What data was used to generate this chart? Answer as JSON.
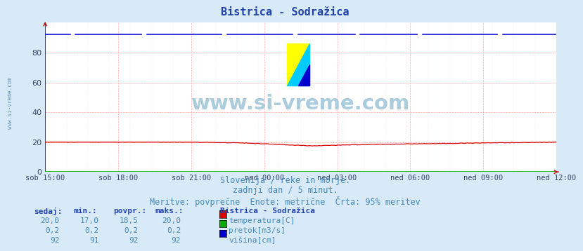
{
  "title": "Bistrica - Sodražica",
  "subtitle1": "Slovenija / reke in morje.",
  "subtitle2": "zadnji dan / 5 minut.",
  "subtitle3": "Meritve: povprečne  Enote: metrične  Črta: 95% meritev",
  "bg_color": "#d8eaf8",
  "plot_bg_color": "#ffffff",
  "title_color": "#2244aa",
  "subtitle_color": "#4488bb",
  "grid_color_major": "#ffaaaa",
  "grid_color_minor": "#ffdddd",
  "xticklabels": [
    "sob 15:00",
    "sob 18:00",
    "sob 21:00",
    "ned 00:00",
    "ned 03:00",
    "ned 06:00",
    "ned 09:00",
    "ned 12:00"
  ],
  "yticks": [
    0,
    20,
    40,
    60,
    80
  ],
  "ylim": [
    0,
    100
  ],
  "n_points": 288,
  "temp_color": "#dd0000",
  "pretok_color": "#00aa00",
  "visina_color": "#0000cc",
  "watermark_text": "www.si-vreme.com",
  "watermark_color": "#aaccdd",
  "legend_title": "Bistrica - Sodražica",
  "axis_arrow_color": "#cc0000",
  "tick_color": "#334466",
  "table_header_color": "#2244aa",
  "left_label_color": "#6699bb"
}
